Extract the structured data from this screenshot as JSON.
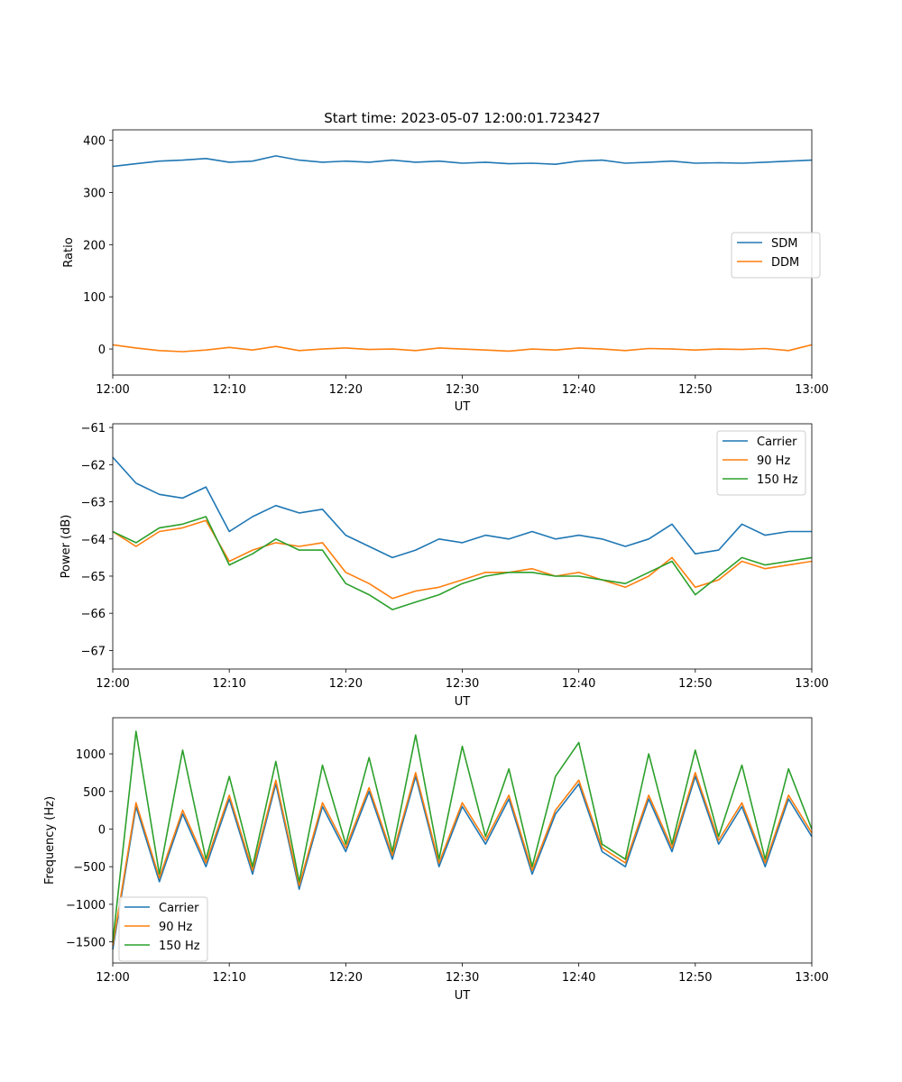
{
  "figure_title": "Start time: 2023-05-07 12:00:01.723427",
  "chart_data": [
    {
      "type": "line",
      "title": "Start time: 2023-05-07 12:00:01.723427",
      "xlabel": "UT",
      "ylabel": "Ratio",
      "xlim": [
        "12:00",
        "13:00"
      ],
      "ylim": [
        -50,
        420
      ],
      "xticks": [
        "12:00",
        "12:10",
        "12:20",
        "12:30",
        "12:40",
        "12:50",
        "13:00"
      ],
      "yticks": [
        "0",
        "100",
        "200",
        "300",
        "400"
      ],
      "ytick_values": [
        0,
        100,
        200,
        300,
        400
      ],
      "legend_position": "center-right",
      "x": [
        "12:00",
        "12:02",
        "12:04",
        "12:06",
        "12:08",
        "12:10",
        "12:12",
        "12:14",
        "12:16",
        "12:18",
        "12:20",
        "12:22",
        "12:24",
        "12:26",
        "12:28",
        "12:30",
        "12:32",
        "12:34",
        "12:36",
        "12:38",
        "12:40",
        "12:42",
        "12:44",
        "12:46",
        "12:48",
        "12:50",
        "12:52",
        "12:54",
        "12:56",
        "12:58",
        "13:00"
      ],
      "series": [
        {
          "name": "SDM",
          "color": "#1f77b4",
          "values": [
            350,
            355,
            360,
            362,
            365,
            358,
            360,
            370,
            362,
            358,
            360,
            358,
            362,
            358,
            360,
            356,
            358,
            355,
            356,
            354,
            360,
            362,
            356,
            358,
            360,
            356,
            357,
            356,
            358,
            360,
            362
          ]
        },
        {
          "name": "DDM",
          "color": "#ff7f0e",
          "values": [
            8,
            2,
            -3,
            -5,
            -2,
            3,
            -2,
            5,
            -3,
            0,
            2,
            -1,
            0,
            -3,
            2,
            0,
            -2,
            -4,
            0,
            -2,
            2,
            0,
            -3,
            1,
            0,
            -2,
            0,
            -1,
            1,
            -3,
            8
          ]
        }
      ]
    },
    {
      "type": "line",
      "xlabel": "UT",
      "ylabel": "Power (dB)",
      "xlim": [
        "12:00",
        "13:00"
      ],
      "ylim": [
        -67.5,
        -60.9
      ],
      "xticks": [
        "12:00",
        "12:10",
        "12:20",
        "12:30",
        "12:40",
        "12:50",
        "13:00"
      ],
      "yticks": [
        "−61",
        "−62",
        "−63",
        "−64",
        "−65",
        "−66",
        "−67"
      ],
      "ytick_values": [
        -61,
        -62,
        -63,
        -64,
        -65,
        -66,
        -67
      ],
      "legend_position": "top-right",
      "x": [
        "12:00",
        "12:02",
        "12:04",
        "12:06",
        "12:08",
        "12:10",
        "12:12",
        "12:14",
        "12:16",
        "12:18",
        "12:20",
        "12:22",
        "12:24",
        "12:26",
        "12:28",
        "12:30",
        "12:32",
        "12:34",
        "12:36",
        "12:38",
        "12:40",
        "12:42",
        "12:44",
        "12:46",
        "12:48",
        "12:50",
        "12:52",
        "12:54",
        "12:56",
        "12:58",
        "13:00"
      ],
      "series": [
        {
          "name": "Carrier",
          "color": "#1f77b4",
          "values": [
            -61.8,
            -62.5,
            -62.8,
            -62.9,
            -62.6,
            -63.8,
            -63.4,
            -63.1,
            -63.3,
            -63.2,
            -63.9,
            -64.2,
            -64.5,
            -64.3,
            -64.0,
            -64.1,
            -63.9,
            -64.0,
            -63.8,
            -64.0,
            -63.9,
            -64.0,
            -64.2,
            -64.0,
            -63.6,
            -64.4,
            -64.3,
            -63.6,
            -63.9,
            -63.8,
            -63.8
          ]
        },
        {
          "name": "90 Hz",
          "color": "#ff7f0e",
          "values": [
            -63.8,
            -64.2,
            -63.8,
            -63.7,
            -63.5,
            -64.6,
            -64.3,
            -64.1,
            -64.2,
            -64.1,
            -64.9,
            -65.2,
            -65.6,
            -65.4,
            -65.3,
            -65.1,
            -64.9,
            -64.9,
            -64.8,
            -65.0,
            -64.9,
            -65.1,
            -65.3,
            -65.0,
            -64.5,
            -65.3,
            -65.1,
            -64.6,
            -64.8,
            -64.7,
            -64.6
          ]
        },
        {
          "name": "150 Hz",
          "color": "#2ca02c",
          "values": [
            -63.8,
            -64.1,
            -63.7,
            -63.6,
            -63.4,
            -64.7,
            -64.4,
            -64.0,
            -64.3,
            -64.3,
            -65.2,
            -65.5,
            -65.9,
            -65.7,
            -65.5,
            -65.2,
            -65.0,
            -64.9,
            -64.9,
            -65.0,
            -65.0,
            -65.1,
            -65.2,
            -64.9,
            -64.6,
            -65.5,
            -65.0,
            -64.5,
            -64.7,
            -64.6,
            -64.5
          ]
        }
      ]
    },
    {
      "type": "line",
      "xlabel": "UT",
      "ylabel": "Frequency (Hz)",
      "xlim": [
        "12:00",
        "13:00"
      ],
      "ylim": [
        -1780,
        1480
      ],
      "xticks": [
        "12:00",
        "12:10",
        "12:20",
        "12:30",
        "12:40",
        "12:50",
        "13:00"
      ],
      "yticks": [
        "1000",
        "500",
        "0",
        "−500",
        "−1000",
        "−1500"
      ],
      "ytick_values": [
        1000,
        500,
        0,
        -500,
        -1000,
        -1500
      ],
      "legend_position": "bottom-left",
      "x": [
        "12:00",
        "12:02",
        "12:04",
        "12:06",
        "12:08",
        "12:10",
        "12:12",
        "12:14",
        "12:16",
        "12:18",
        "12:20",
        "12:22",
        "12:24",
        "12:26",
        "12:28",
        "12:30",
        "12:32",
        "12:34",
        "12:36",
        "12:38",
        "12:40",
        "12:42",
        "12:44",
        "12:46",
        "12:48",
        "12:50",
        "12:52",
        "12:54",
        "12:56",
        "12:58",
        "13:00"
      ],
      "series": [
        {
          "name": "Carrier",
          "color": "#1f77b4",
          "values": [
            -1600,
            300,
            -700,
            200,
            -500,
            400,
            -600,
            600,
            -800,
            300,
            -300,
            500,
            -400,
            700,
            -500,
            300,
            -200,
            400,
            -600,
            200,
            600,
            -300,
            -500,
            400,
            -300,
            700,
            -200,
            300,
            -500,
            400,
            -100
          ]
        },
        {
          "name": "90 Hz",
          "color": "#ff7f0e",
          "values": [
            -1550,
            350,
            -650,
            250,
            -450,
            450,
            -550,
            650,
            -750,
            350,
            -250,
            550,
            -350,
            750,
            -450,
            350,
            -150,
            450,
            -550,
            250,
            650,
            -250,
            -450,
            450,
            -250,
            750,
            -150,
            350,
            -450,
            450,
            -50
          ]
        },
        {
          "name": "150 Hz",
          "color": "#2ca02c",
          "values": [
            -1500,
            1300,
            -600,
            1050,
            -400,
            700,
            -500,
            900,
            -700,
            850,
            -200,
            950,
            -300,
            1250,
            -400,
            1100,
            -100,
            800,
            -500,
            700,
            1150,
            -200,
            -400,
            1000,
            -200,
            1050,
            -100,
            850,
            -400,
            800,
            0
          ]
        }
      ]
    }
  ]
}
